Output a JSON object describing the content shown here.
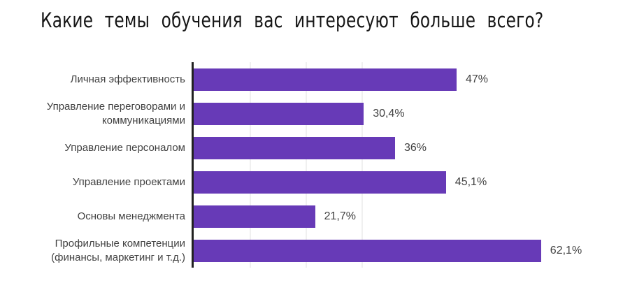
{
  "chart_data": {
    "type": "bar",
    "orientation": "horizontal",
    "title": "Какие темы обучения вас интересуют больше всего?",
    "categories": [
      "Личная эффективность",
      "Управление переговорами и коммуникациями",
      "Управление персоналом",
      "Управление проектами",
      "Основы менеджмента",
      "Профильные компетенции (финансы, маркетинг и т.д.)"
    ],
    "values": [
      47,
      30.4,
      36,
      45.1,
      21.7,
      62.1
    ],
    "value_labels": [
      "47%",
      "30,4%",
      "36%",
      "45,1%",
      "21,7%",
      "62,1%"
    ],
    "xlabel": "",
    "ylabel": "",
    "xlim": [
      0,
      64
    ],
    "gridline_values": [
      10,
      20,
      30
    ],
    "grid": true,
    "legend": false,
    "colors": {
      "bar": "#673ab7",
      "axis": "#212121",
      "grid": "#f0f0f0",
      "category_label": "#424242",
      "value_label": "#424242",
      "title": "#161616"
    }
  }
}
